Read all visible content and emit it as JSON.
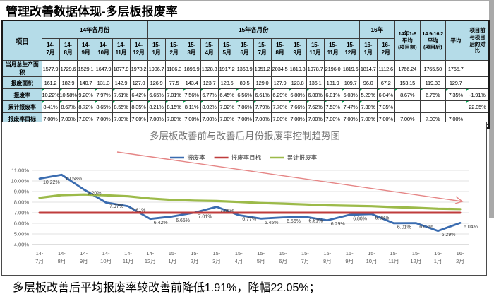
{
  "page": {
    "title": "管理改善数据体现-多层板报废率",
    "caption": "多层板改善后平均报废率较改善前降低1.91%，降幅22.05%；"
  },
  "table": {
    "corner_header": "项目",
    "groups": [
      {
        "label": "14年各月份",
        "span": 6
      },
      {
        "label": "15年各月份",
        "span": 12
      },
      {
        "label": "16年",
        "span": 2
      }
    ],
    "month_headers": [
      "14-7月",
      "14-8月",
      "14-9月",
      "14-10月",
      "14-11月",
      "14-12月",
      "15-1月",
      "15-2月",
      "15-3月",
      "15-4月",
      "15-5月",
      "15-6月",
      "15-7月",
      "15-8月",
      "15-9月",
      "15-10月",
      "15-11月",
      "15-12月",
      "16-1月",
      "16-2月"
    ],
    "summary_headers": [
      "14年1-8\n平均\n(项目前)",
      "14.9-16.2\n平均\n(项目后)",
      "平均",
      "项目前\n与项目\n后的对\n比"
    ],
    "rows": [
      {
        "label": "当月总生产面积",
        "marked": false,
        "cells": [
          "1577.9",
          "1729.6",
          "1529.1",
          "1647.9",
          "1877.9",
          "1978.2",
          "1906.7",
          "1106.3",
          "1896.9",
          "1828.3",
          "1917.2",
          "1363.9",
          "1951.2",
          "2034.5",
          "1819.3",
          "1978.7",
          "2196.0",
          "1819.6",
          "1814.7",
          "1112.6",
          "1766.24",
          "1765.50",
          "1765.7",
          ""
        ]
      },
      {
        "label": "报废面积",
        "marked": false,
        "cells": [
          "161.2",
          "182.9",
          "140.7",
          "131.3",
          "142.9",
          "127.0",
          "126.9",
          "77.5",
          "143.4",
          "123.7",
          "123.6",
          "89.5",
          "129.0",
          "127.9",
          "123.8",
          "136.1",
          "131.9",
          "109.7",
          "96.0",
          "67.2",
          "153.15",
          "119.33",
          "129.7",
          ""
        ]
      },
      {
        "label": "报废率",
        "marked": true,
        "cells": [
          "10.22%",
          "10.58%",
          "9.20%",
          "7.97%",
          "7.61%",
          "6.42%",
          "6.65%",
          "7.01%",
          "7.56%",
          "6.77%",
          "6.45%",
          "6.56%",
          "6.61%",
          "6.29%",
          "6.80%",
          "6.88%",
          "6.01%",
          "6.03%",
          "5.29%",
          "6.04%",
          "8.67%",
          "6.76%",
          "7.35%",
          "-1.91%"
        ]
      },
      {
        "label": "累计报废率",
        "marked": true,
        "cells": [
          "8.41%",
          "8.67%",
          "8.72%",
          "8.65%",
          "8.55%",
          "8.35%",
          "8.21%",
          "8.15%",
          "8.11%",
          "8.02%",
          "7.92%",
          "7.86%",
          "7.79%",
          "7.70%",
          "7.66%",
          "7.62%",
          "7.53%",
          "7.47%",
          "7.38%",
          "7.35%",
          "",
          "",
          "",
          "22.05%"
        ]
      },
      {
        "label": "报废率目标",
        "marked": false,
        "cells": [
          "7.00%",
          "7.00%",
          "7.00%",
          "7.00%",
          "7.00%",
          "7.00%",
          "7.00%",
          "7.00%",
          "7.00%",
          "7.00%",
          "7.00%",
          "7.00%",
          "7.00%",
          "7.00%",
          "7.00%",
          "7.00%",
          "7.00%",
          "7.00%",
          "7.00%",
          "7.00%",
          "7.00%",
          "7.00%",
          "7.00%",
          ""
        ]
      }
    ]
  },
  "chart_data": {
    "type": "line",
    "title": "多层板改善前与改善后月份报废率控制趋势图",
    "categories": [
      "14-7月",
      "14-8月",
      "14-9月",
      "14-10月",
      "14-11月",
      "14-12月",
      "15-1月",
      "15-2月",
      "15-3月",
      "15-4月",
      "15-5月",
      "15-6月",
      "15-7月",
      "15-8月",
      "15-9月",
      "15-10月",
      "15-11月",
      "15-12月",
      "16-1月",
      "16-2月"
    ],
    "series": [
      {
        "name": "报废率",
        "color": "#3a6cb0",
        "data_labels": true,
        "values": [
          10.22,
          10.58,
          9.2,
          7.97,
          7.61,
          6.42,
          6.65,
          7.01,
          7.56,
          6.77,
          6.45,
          6.56,
          6.61,
          6.29,
          6.8,
          6.88,
          6.01,
          6.03,
          5.29,
          6.04
        ]
      },
      {
        "name": "报废率目标",
        "color": "#bf3c3c",
        "data_labels": false,
        "values": [
          7.0,
          7.0,
          7.0,
          7.0,
          7.0,
          7.0,
          7.0,
          7.0,
          7.0,
          7.0,
          7.0,
          7.0,
          7.0,
          7.0,
          7.0,
          7.0,
          7.0,
          7.0,
          7.0,
          7.0
        ]
      },
      {
        "name": "累计报废率",
        "color": "#9cba49",
        "data_labels": false,
        "values": [
          8.41,
          8.67,
          8.72,
          8.65,
          8.55,
          8.35,
          8.21,
          8.15,
          8.11,
          8.02,
          7.92,
          7.86,
          7.79,
          7.7,
          7.66,
          7.62,
          7.53,
          7.47,
          7.38,
          7.35
        ]
      }
    ],
    "ylim": [
      4,
      11
    ],
    "ytick_step": 1,
    "grid": true,
    "legend_position": "top-center",
    "annotation_arrow": {
      "description": "downward-trend-arrow",
      "color": "#e58585"
    }
  }
}
